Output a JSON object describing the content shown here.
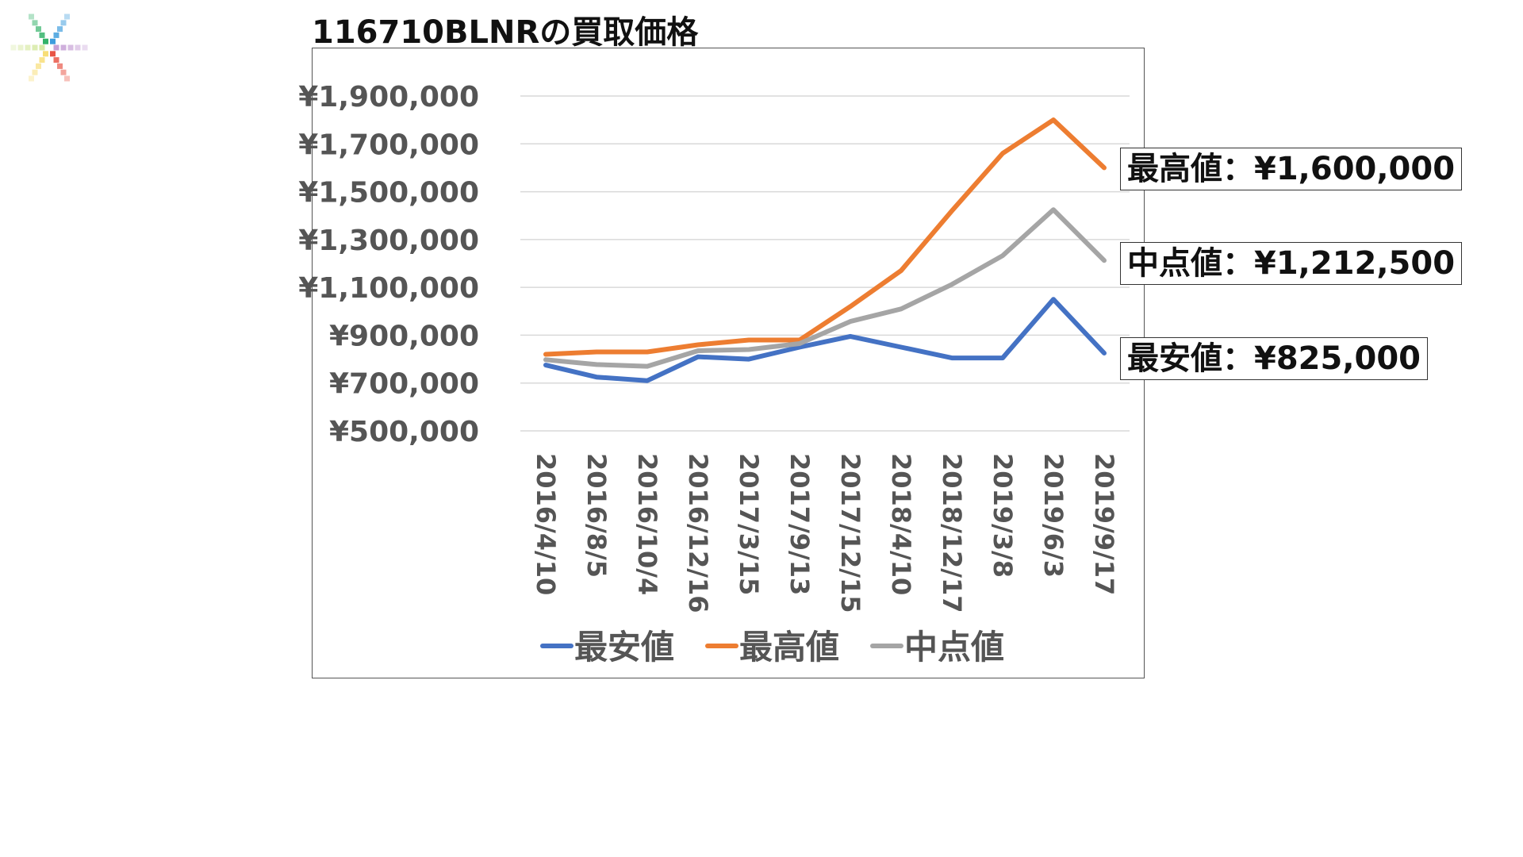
{
  "title": "116710BLNRの買取価格",
  "colors": {
    "low": "#4472C4",
    "high": "#ED7D31",
    "mid": "#A5A5A5",
    "grid": "#D9D9D9",
    "axis_text": "#595959"
  },
  "chart_data": {
    "type": "line",
    "title": "",
    "xlabel": "",
    "ylabel": "",
    "categories": [
      "2016/4/10",
      "2016/8/5",
      "2016/10/4",
      "2016/12/16",
      "2017/3/15",
      "2017/9/13",
      "2017/12/15",
      "2018/4/10",
      "2018/12/17",
      "2019/3/8",
      "2019/6/3",
      "2019/9/17"
    ],
    "ylim": [
      500000,
      1900000
    ],
    "yticks": [
      "¥1,900,000",
      "¥1,700,000",
      "¥1,500,000",
      "¥1,300,000",
      "¥1,100,000",
      "¥900,000",
      "¥700,000",
      "¥500,000"
    ],
    "grid": true,
    "legend": "bottom",
    "series": [
      {
        "name": "最安値",
        "color_key": "low",
        "values": [
          775000,
          725000,
          710000,
          810000,
          800000,
          850000,
          895000,
          850000,
          805000,
          805000,
          1050000,
          825000
        ]
      },
      {
        "name": "最高値",
        "color_key": "high",
        "values": [
          820000,
          830000,
          830000,
          860000,
          880000,
          880000,
          1020000,
          1170000,
          1420000,
          1660000,
          1800000,
          1600000
        ]
      },
      {
        "name": "中点値",
        "color_key": "mid",
        "values": [
          797500,
          777500,
          770000,
          835000,
          840000,
          865000,
          957500,
          1010000,
          1112500,
          1232500,
          1425000,
          1212500
        ]
      }
    ],
    "annotations": [
      {
        "series": "最高値",
        "text": "最高値：¥1,600,000"
      },
      {
        "series": "中点値",
        "text": "中点値：¥1,212,500"
      },
      {
        "series": "最安値",
        "text": "最安値：¥825,000"
      }
    ]
  }
}
